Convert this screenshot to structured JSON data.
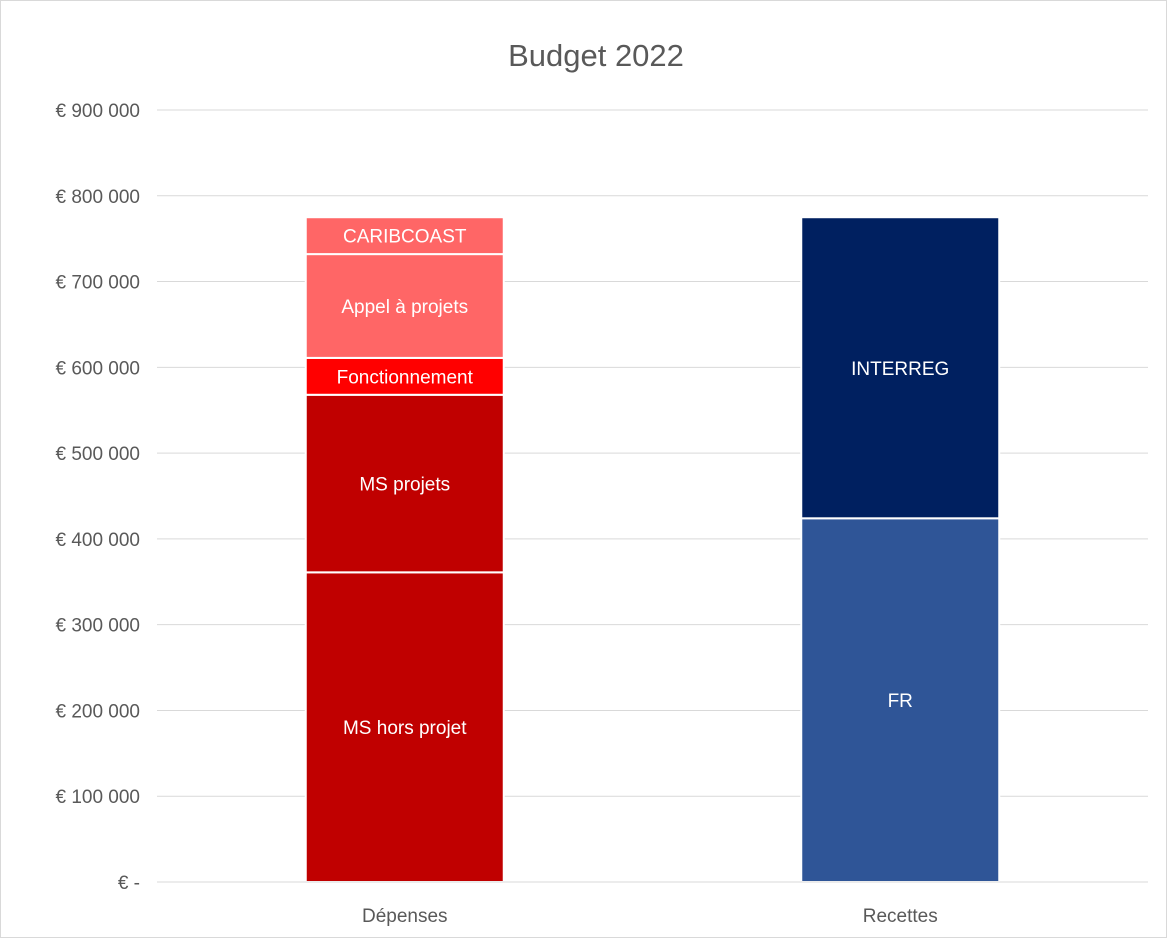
{
  "chart_data": {
    "type": "bar",
    "stacked": true,
    "title": "Budget 2022",
    "xlabel": "",
    "ylabel": "",
    "ylim": [
      0,
      900000
    ],
    "yticks": [
      0,
      100000,
      200000,
      300000,
      400000,
      500000,
      600000,
      700000,
      800000,
      900000
    ],
    "ytick_labels": [
      "€ -",
      "€ 100 000",
      "€ 200 000",
      "€ 300 000",
      "€ 400 000",
      "€ 500 000",
      "€ 600 000",
      "€ 700 000",
      "€ 800 000",
      "€ 900 000"
    ],
    "grid": true,
    "legend": "none",
    "categories": [
      "Dépenses",
      "Recettes"
    ],
    "series": [
      {
        "name": "MS hors projet",
        "category": "Dépenses",
        "value": 361000,
        "color": "#c00000"
      },
      {
        "name": "MS projets",
        "category": "Dépenses",
        "value": 207000,
        "color": "#c00000"
      },
      {
        "name": "Fonctionnement",
        "category": "Dépenses",
        "value": 43000,
        "color": "#ff0000"
      },
      {
        "name": "Appel à projets",
        "category": "Dépenses",
        "value": 121000,
        "color": "#ff6666"
      },
      {
        "name": "CARIBCOAST",
        "category": "Dépenses",
        "value": 43000,
        "color": "#ff6666"
      },
      {
        "name": "FR",
        "category": "Recettes",
        "value": 424000,
        "color": "#2f5597"
      },
      {
        "name": "INTERREG",
        "category": "Recettes",
        "value": 351000,
        "color": "#002060"
      }
    ]
  }
}
